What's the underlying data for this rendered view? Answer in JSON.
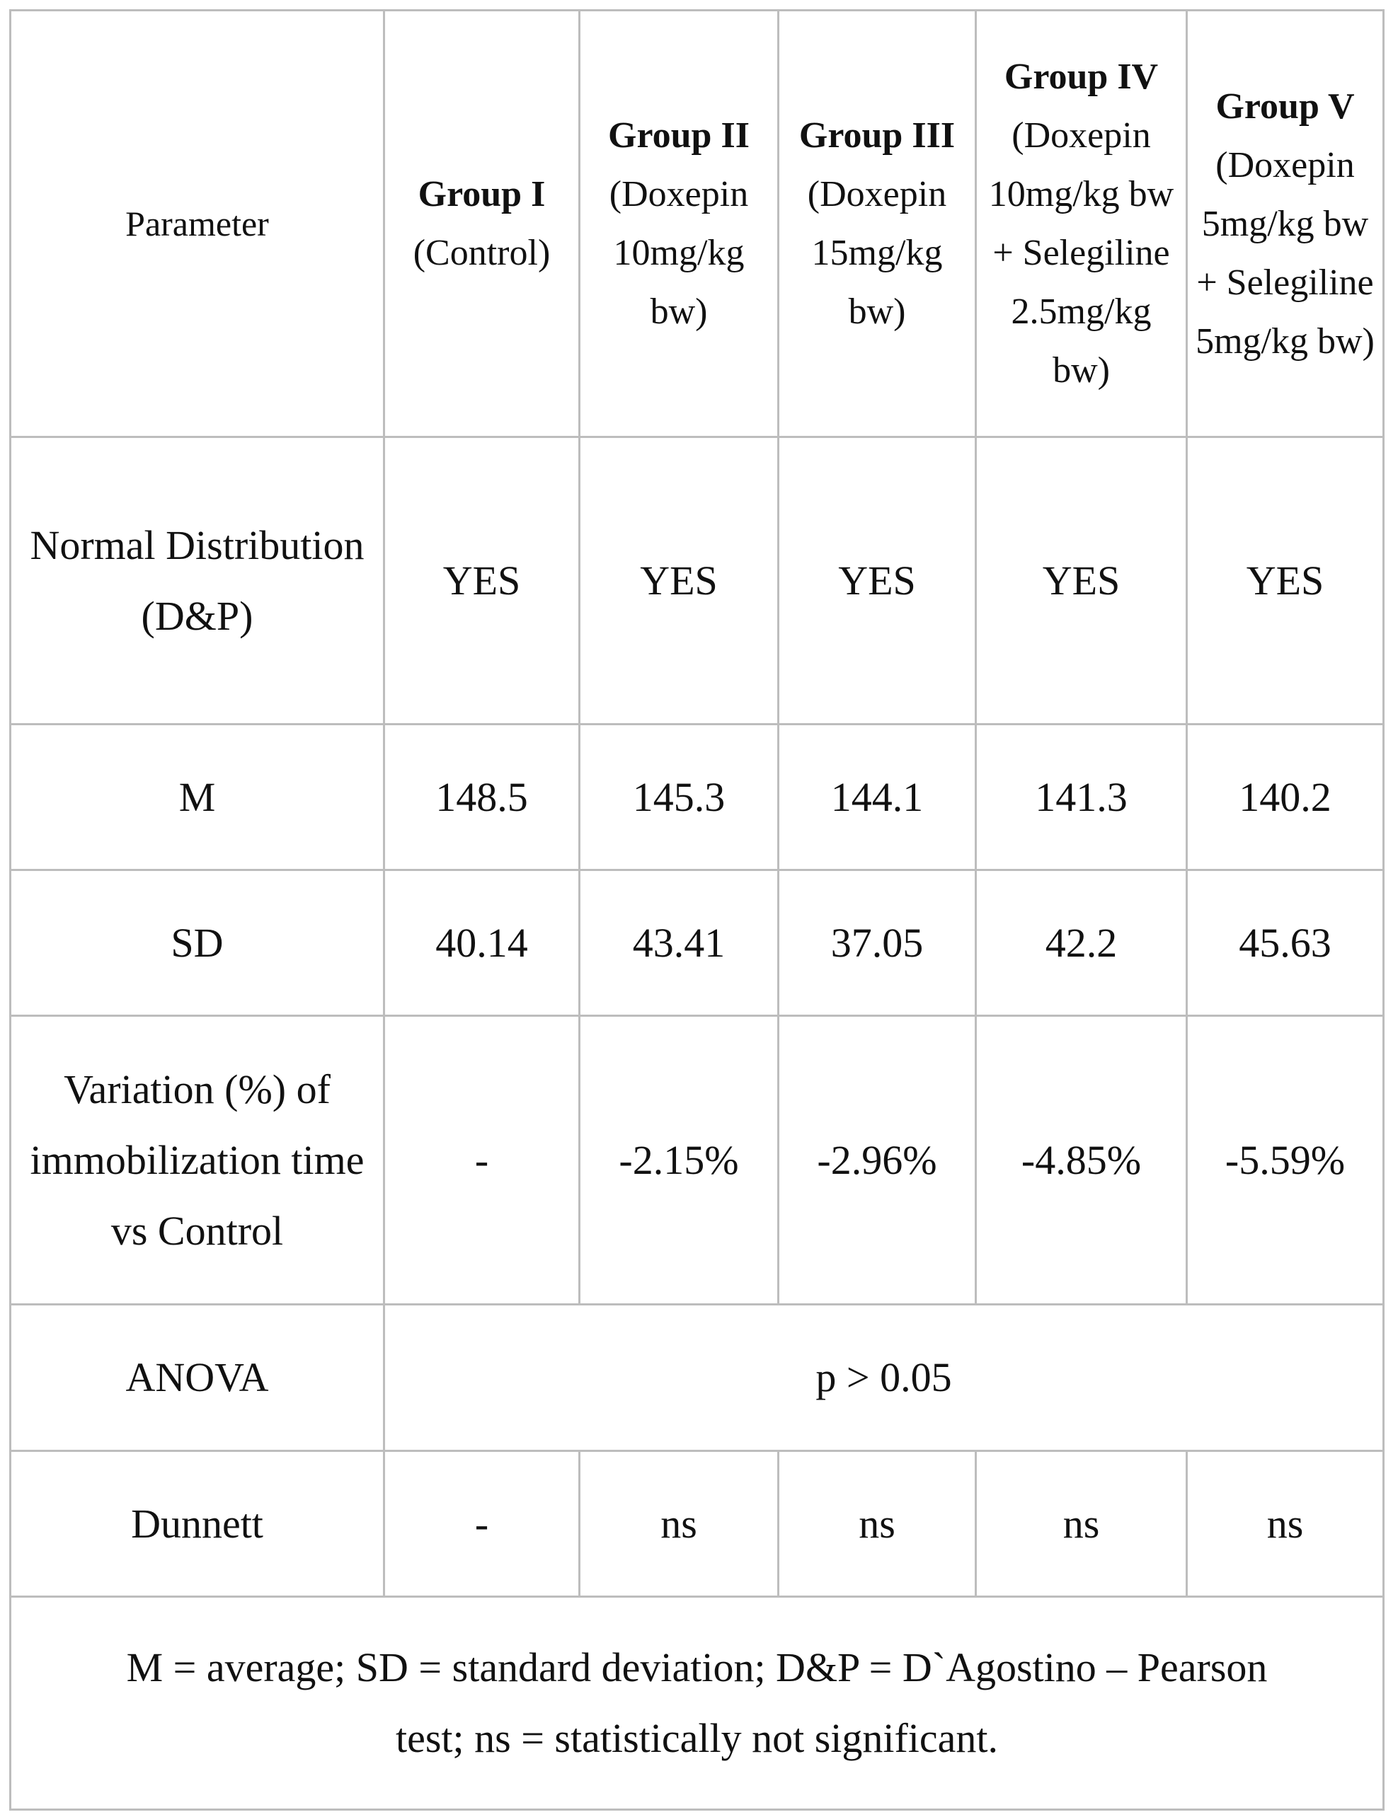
{
  "table": {
    "header": [
      "Parameter",
      {
        "name": "Group I",
        "detail": "(Control)"
      },
      {
        "name": "Group II",
        "detail": "(Doxepin 10mg/kg bw)"
      },
      {
        "name": "Group III",
        "detail": "(Doxepin 15mg/kg bw)"
      },
      {
        "name": "Group IV",
        "detail": "(Doxepin 10mg/kg bw + Selegiline 2.5mg/kg bw)"
      },
      {
        "name": "Group V",
        "detail": "(Doxepin 5mg/kg bw + Selegiline 5mg/kg bw)"
      }
    ],
    "rows": [
      [
        "Normal Distribution (D&P)",
        "YES",
        "YES",
        "YES",
        "YES",
        "YES"
      ],
      [
        "M",
        "148.5",
        "145.3",
        "144.1",
        "141.3",
        "140.2"
      ],
      [
        "SD",
        "40.14",
        "43.41",
        "37.05",
        "42.2",
        "45.63"
      ],
      [
        "Variation (%) of immobilization time vs Control",
        "-",
        "-2.15%",
        "-2.96%",
        "-4.85%",
        "-5.59%"
      ],
      [
        "ANOVA",
        "p > 0.05"
      ],
      [
        "Dunnett",
        "-",
        "ns",
        "ns",
        "ns",
        "ns"
      ]
    ],
    "footnote": "M = average; SD = standard deviation; D&P = D`Agostino – Pearson test; ns = statistically not significant."
  }
}
